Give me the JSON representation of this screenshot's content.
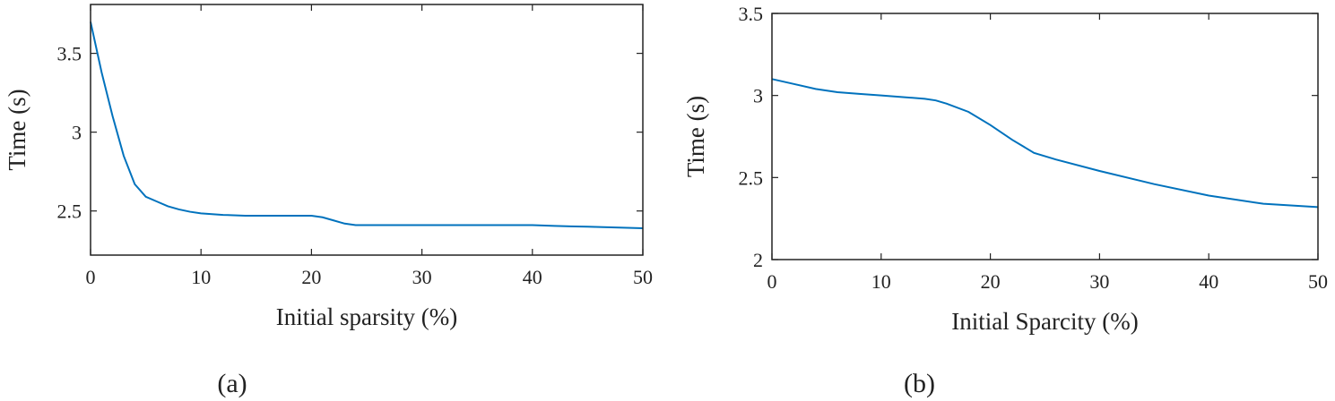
{
  "chart_data": [
    {
      "type": "line",
      "label": "(a)",
      "x_label": "Initial sparsity (%)",
      "y_label": "Time (s)",
      "xlim": [
        0,
        50
      ],
      "xticks": [
        0,
        10,
        20,
        30,
        40,
        50
      ],
      "ylim": [
        2.22,
        3.81
      ],
      "yticks": [
        2.5,
        3,
        3.5
      ],
      "series": [
        {
          "color": "#0072bd",
          "x": [
            0,
            1,
            2,
            3,
            4,
            5,
            6,
            7,
            8,
            9,
            10,
            12,
            14,
            16,
            18,
            20,
            21,
            22,
            23,
            24,
            25,
            30,
            35,
            40,
            42,
            45,
            50
          ],
          "values": [
            3.7,
            3.38,
            3.1,
            2.85,
            2.67,
            2.59,
            2.56,
            2.53,
            2.51,
            2.495,
            2.485,
            2.475,
            2.47,
            2.47,
            2.47,
            2.47,
            2.46,
            2.44,
            2.42,
            2.41,
            2.41,
            2.41,
            2.41,
            2.41,
            2.405,
            2.4,
            2.39
          ]
        }
      ]
    },
    {
      "type": "line",
      "label": "(b)",
      "x_label": "Initial Sparcity (%)",
      "y_label": "Time (s)",
      "xlim": [
        0,
        50
      ],
      "xticks": [
        0,
        10,
        20,
        30,
        40,
        50
      ],
      "ylim": [
        2,
        3.5
      ],
      "yticks": [
        2,
        2.5,
        3,
        3.5
      ],
      "series": [
        {
          "color": "#0072bd",
          "x": [
            0,
            2,
            4,
            6,
            8,
            10,
            12,
            14,
            15,
            16,
            18,
            20,
            22,
            24,
            26,
            30,
            35,
            40,
            45,
            50
          ],
          "values": [
            3.1,
            3.07,
            3.04,
            3.02,
            3.01,
            3.0,
            2.99,
            2.98,
            2.97,
            2.95,
            2.9,
            2.82,
            2.73,
            2.65,
            2.61,
            2.54,
            2.46,
            2.39,
            2.34,
            2.32
          ]
        }
      ]
    }
  ]
}
